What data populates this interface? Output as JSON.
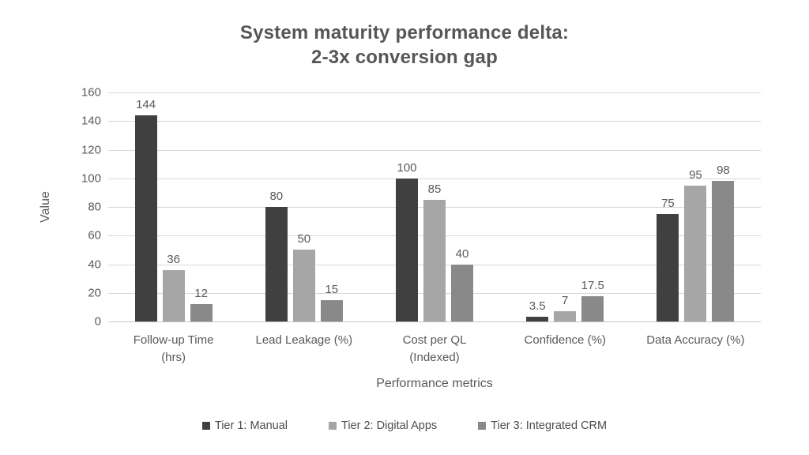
{
  "title": {
    "line1": "System maturity performance delta:",
    "line2": "2-3x conversion gap"
  },
  "chart_data": {
    "type": "bar",
    "title": "System maturity performance delta: 2-3x conversion gap",
    "categories": [
      "Follow-up Time (hrs)",
      "Lead Leakage (%)",
      "Cost per QL (Indexed)",
      "Confidence (%)",
      "Data Accuracy (%)"
    ],
    "category_label_lines": [
      [
        "Follow-up Time",
        "(hrs)"
      ],
      [
        "Lead Leakage (%)"
      ],
      [
        "Cost per QL",
        "(Indexed)"
      ],
      [
        "Confidence (%)"
      ],
      [
        "Data Accuracy (%)"
      ]
    ],
    "series": [
      {
        "name": "Tier 1: Manual",
        "color": "#404040",
        "values": [
          144,
          80,
          100,
          3.5,
          75
        ]
      },
      {
        "name": "Tier 2: Digital Apps",
        "color": "#a6a6a6",
        "values": [
          36,
          50,
          85,
          7,
          95
        ]
      },
      {
        "name": "Tier 3: Integrated CRM",
        "color": "#898989",
        "values": [
          12,
          15,
          40,
          17.5,
          98
        ]
      }
    ],
    "xlabel": "Performance metrics",
    "ylabel": "Value",
    "ylim": [
      0,
      160
    ],
    "yticks": [
      0,
      20,
      40,
      60,
      80,
      100,
      120,
      140,
      160
    ],
    "grid": true,
    "legend_position": "bottom",
    "colors": {
      "gridline": "#d9d9d9",
      "baseline": "#c6c6c6",
      "label_text": "#595959",
      "title_text": "#565656"
    }
  }
}
